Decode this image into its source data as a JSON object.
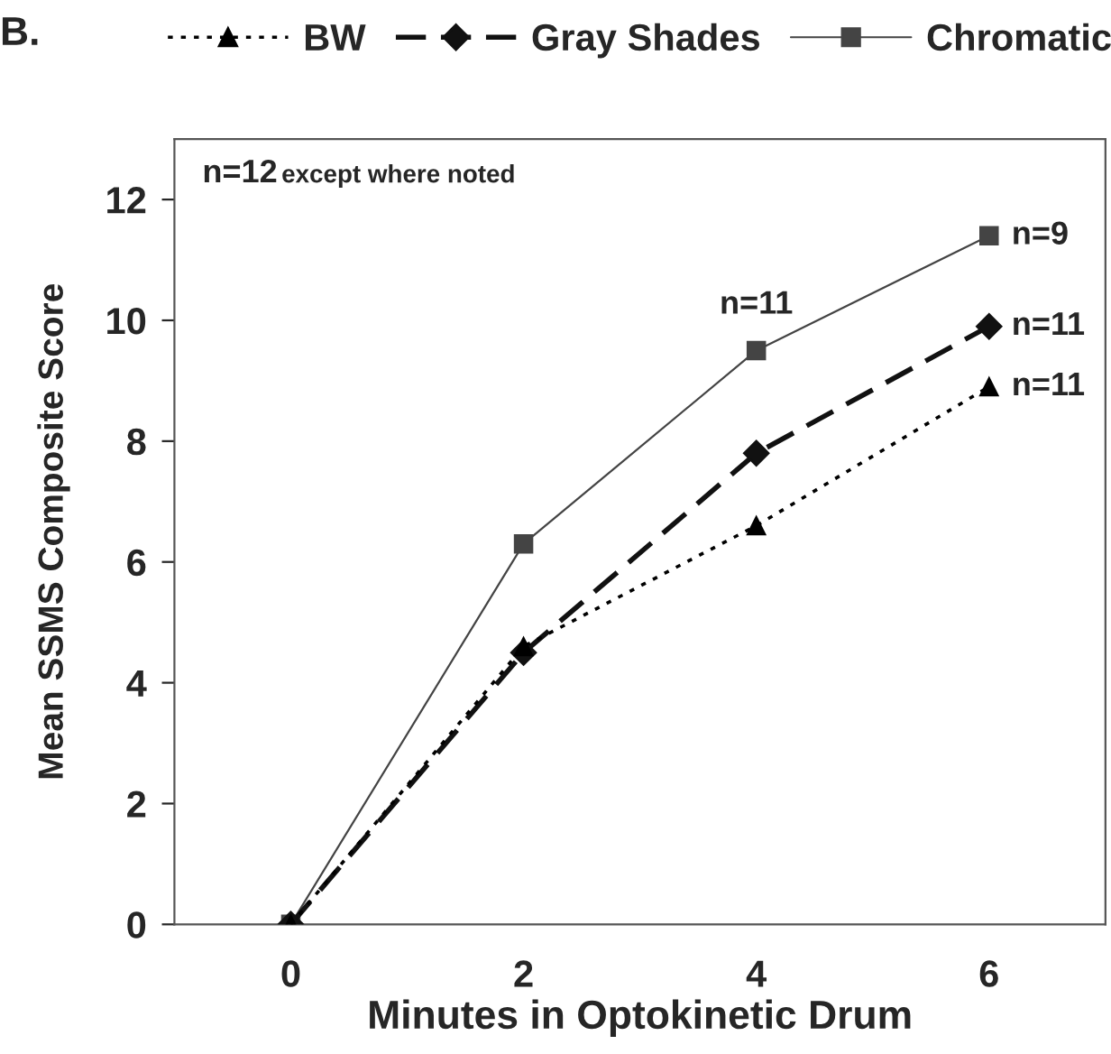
{
  "chart_data": {
    "type": "line",
    "xlabel": "Minutes in Optokinetic Drum",
    "ylabel": "Mean SSMS Composite Score",
    "categories": [
      "0",
      "2",
      "4",
      "6"
    ],
    "series": [
      {
        "name": "BW",
        "color": "#000000",
        "values": [
          0,
          4.6,
          6.6,
          8.9
        ],
        "marker": "triangle",
        "line_style": "dotted"
      },
      {
        "name": "Gray Shades",
        "color": "#111111",
        "values": [
          0,
          4.5,
          7.8,
          9.9
        ],
        "marker": "diamond",
        "line_style": "dashed"
      },
      {
        "name": "Chromatic",
        "color": "#444444",
        "values": [
          0,
          6.3,
          9.5,
          11.4
        ],
        "marker": "square",
        "line_style": "solid"
      }
    ],
    "ylim": [
      0,
      13
    ],
    "yticks": [
      0,
      2,
      4,
      6,
      8,
      10,
      12
    ],
    "grid": false,
    "legend": "top",
    "annotations": [
      "B.",
      "n=12",
      "except where noted",
      {
        "text": "n=11",
        "x": "4",
        "y": 9.5
      },
      {
        "text": "n=9",
        "x": "6",
        "y": 11.4
      },
      {
        "text": "n=11",
        "x": "6",
        "y": 9.9
      },
      {
        "text": "n=11",
        "x": "6",
        "y": 8.9
      }
    ]
  }
}
